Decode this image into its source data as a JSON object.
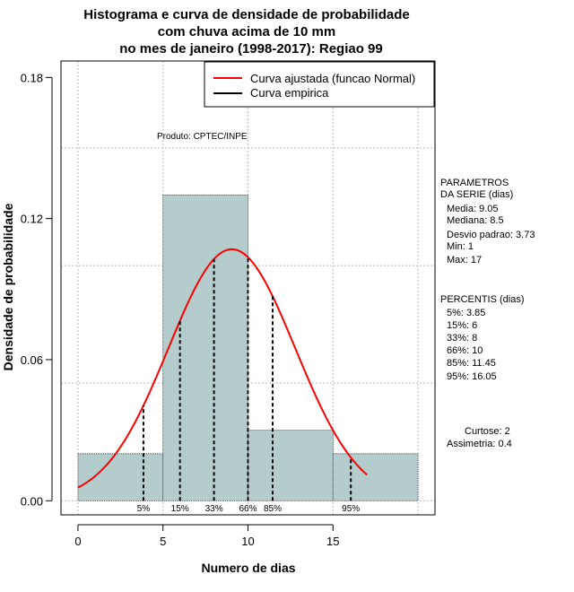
{
  "chart_data": {
    "type": "histogram",
    "title_lines": [
      "Histograma e curva de densidade de probabilidade",
      "com chuva acima de 10 mm",
      "no mes de janeiro (1998-2017): Regiao 99"
    ],
    "xlabel": "Numero de dias",
    "ylabel": "Densidade de probabilidade",
    "xlim": [
      -1,
      21
    ],
    "ylim": [
      -0.006,
      0.187
    ],
    "x_ticks": [
      0,
      5,
      10,
      15
    ],
    "x_tick_labels": [
      "0",
      "5",
      "10",
      "15"
    ],
    "y_ticks": [
      0.0,
      0.06,
      0.12,
      0.18
    ],
    "y_tick_labels": [
      "0.00",
      "0.06",
      "0.12",
      "0.18"
    ],
    "grid": true,
    "grid_x": [
      0,
      5,
      10,
      15,
      20
    ],
    "grid_y": [
      0.0,
      0.05,
      0.1,
      0.15
    ],
    "bins": [
      {
        "from": 0,
        "to": 5,
        "density": 0.02
      },
      {
        "from": 5,
        "to": 10,
        "density": 0.13
      },
      {
        "from": 10,
        "to": 15,
        "density": 0.03
      },
      {
        "from": 15,
        "to": 20,
        "density": 0.02
      }
    ],
    "normal_fit": {
      "mean": 9.05,
      "sd": 3.73,
      "x_from": 0,
      "x_to": 17
    },
    "percentile_markers": [
      {
        "label": "5%",
        "x": 3.85
      },
      {
        "label": "15%",
        "x": 6
      },
      {
        "label": "33%",
        "x": 8
      },
      {
        "label": "66%",
        "x": 10
      },
      {
        "label": "85%",
        "x": 11.45
      },
      {
        "label": "95%",
        "x": 16.05
      }
    ],
    "legend": {
      "position": "top-right",
      "entries": [
        {
          "label": "Curva ajustada (funcao Normal)",
          "color": "#ff0000"
        },
        {
          "label": "Curva empirica",
          "color": "#000000"
        }
      ]
    },
    "annotation": "Produto: CPTEC/INPE",
    "parameters": {
      "heading": [
        "PARAMETROS",
        "DA SERIE (dias)"
      ],
      "lines": [
        "Media: 9.05",
        "Mediana: 8.5",
        "Desvio padrao: 3.73",
        "Min: 1",
        "Max: 17"
      ]
    },
    "percentis": {
      "heading": "PERCENTIS (dias)",
      "lines": [
        "5%: 3.85",
        "15%: 6",
        "33%: 8",
        "66%: 10",
        "85%: 11.45",
        "95%: 16.05"
      ]
    },
    "stats": [
      "Curtose: 2",
      "Assimetria: 0.4"
    ],
    "colors": {
      "bar_fill": "#b4cccc",
      "curve": "#ff0000",
      "grid": "#bbbbbb"
    }
  }
}
